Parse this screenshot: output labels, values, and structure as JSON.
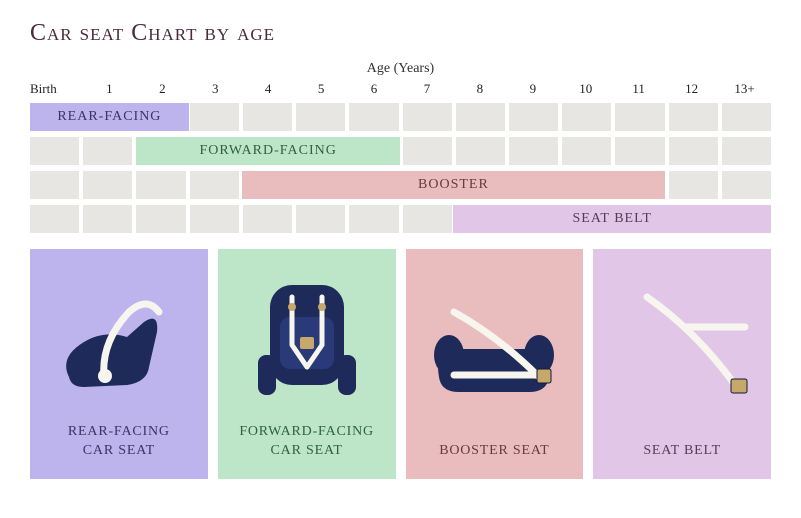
{
  "title": "Car seat Chart by age",
  "axis_label": "Age (Years)",
  "ticks": [
    "Birth",
    "1",
    "2",
    "3",
    "4",
    "5",
    "6",
    "7",
    "8",
    "9",
    "10",
    "11",
    "12",
    "13+"
  ],
  "chart": {
    "grid_count": 14,
    "cell_bg": "#e7e6e3",
    "rows": [
      {
        "label": "REAR-FACING",
        "start": 0,
        "end": 3,
        "color": "#bdb4ed",
        "text": "#3b3465"
      },
      {
        "label": "FORWARD-FACING",
        "start": 2,
        "end": 7,
        "color": "#bde6c8",
        "text": "#2e6144"
      },
      {
        "label": "BOOSTER",
        "start": 4,
        "end": 12,
        "color": "#e9bdbd",
        "text": "#6a3a3a"
      },
      {
        "label": "SEAT BELT",
        "start": 8,
        "end": 14,
        "color": "#e1c6e8",
        "text": "#5a3a5a"
      }
    ]
  },
  "cards": [
    {
      "label": "REAR-FACING\nCAR SEAT",
      "bg": "#bdb4ed",
      "text": "#3b3465",
      "icon": "rear-seat-icon"
    },
    {
      "label": "FORWARD-FACING\nCAR SEAT",
      "bg": "#bde6c8",
      "text": "#2e6144",
      "icon": "forward-seat-icon"
    },
    {
      "label": "BOOSTER SEAT",
      "bg": "#e9bdbd",
      "text": "#6a3a3a",
      "icon": "booster-seat-icon"
    },
    {
      "label": "SEAT BELT",
      "bg": "#e1c6e8",
      "text": "#5a3a5a",
      "icon": "seat-belt-icon"
    }
  ],
  "icon_colors": {
    "seat": "#1e2a5a",
    "strap": "#f7f6ee",
    "buckle": "#c7a86b",
    "outline": "#0f1a3a"
  }
}
